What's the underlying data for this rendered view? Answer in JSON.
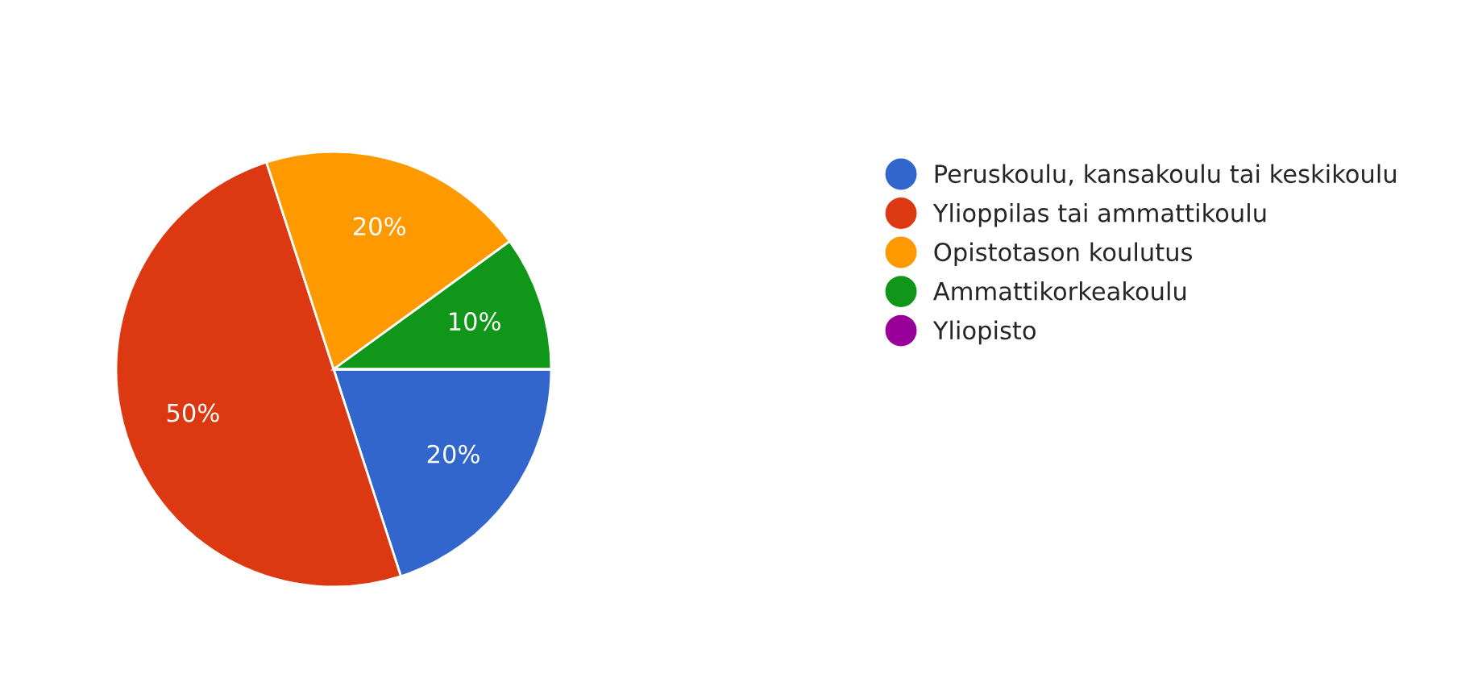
{
  "chart_data": {
    "type": "pie",
    "categories": [
      "Peruskoulu, kansakoulu tai keskikoulu",
      "Ylioppilas tai ammattikoulu",
      "Opistotason koulutus",
      "Ammattikorkeakoulu",
      "Yliopisto"
    ],
    "values": [
      20,
      50,
      20,
      10,
      0
    ],
    "colors": [
      "#3366cc",
      "#dc3912",
      "#ff9900",
      "#109618",
      "#990099"
    ],
    "value_labels": [
      "20%",
      "50%",
      "20%",
      "10%",
      null
    ],
    "legend": "right"
  }
}
